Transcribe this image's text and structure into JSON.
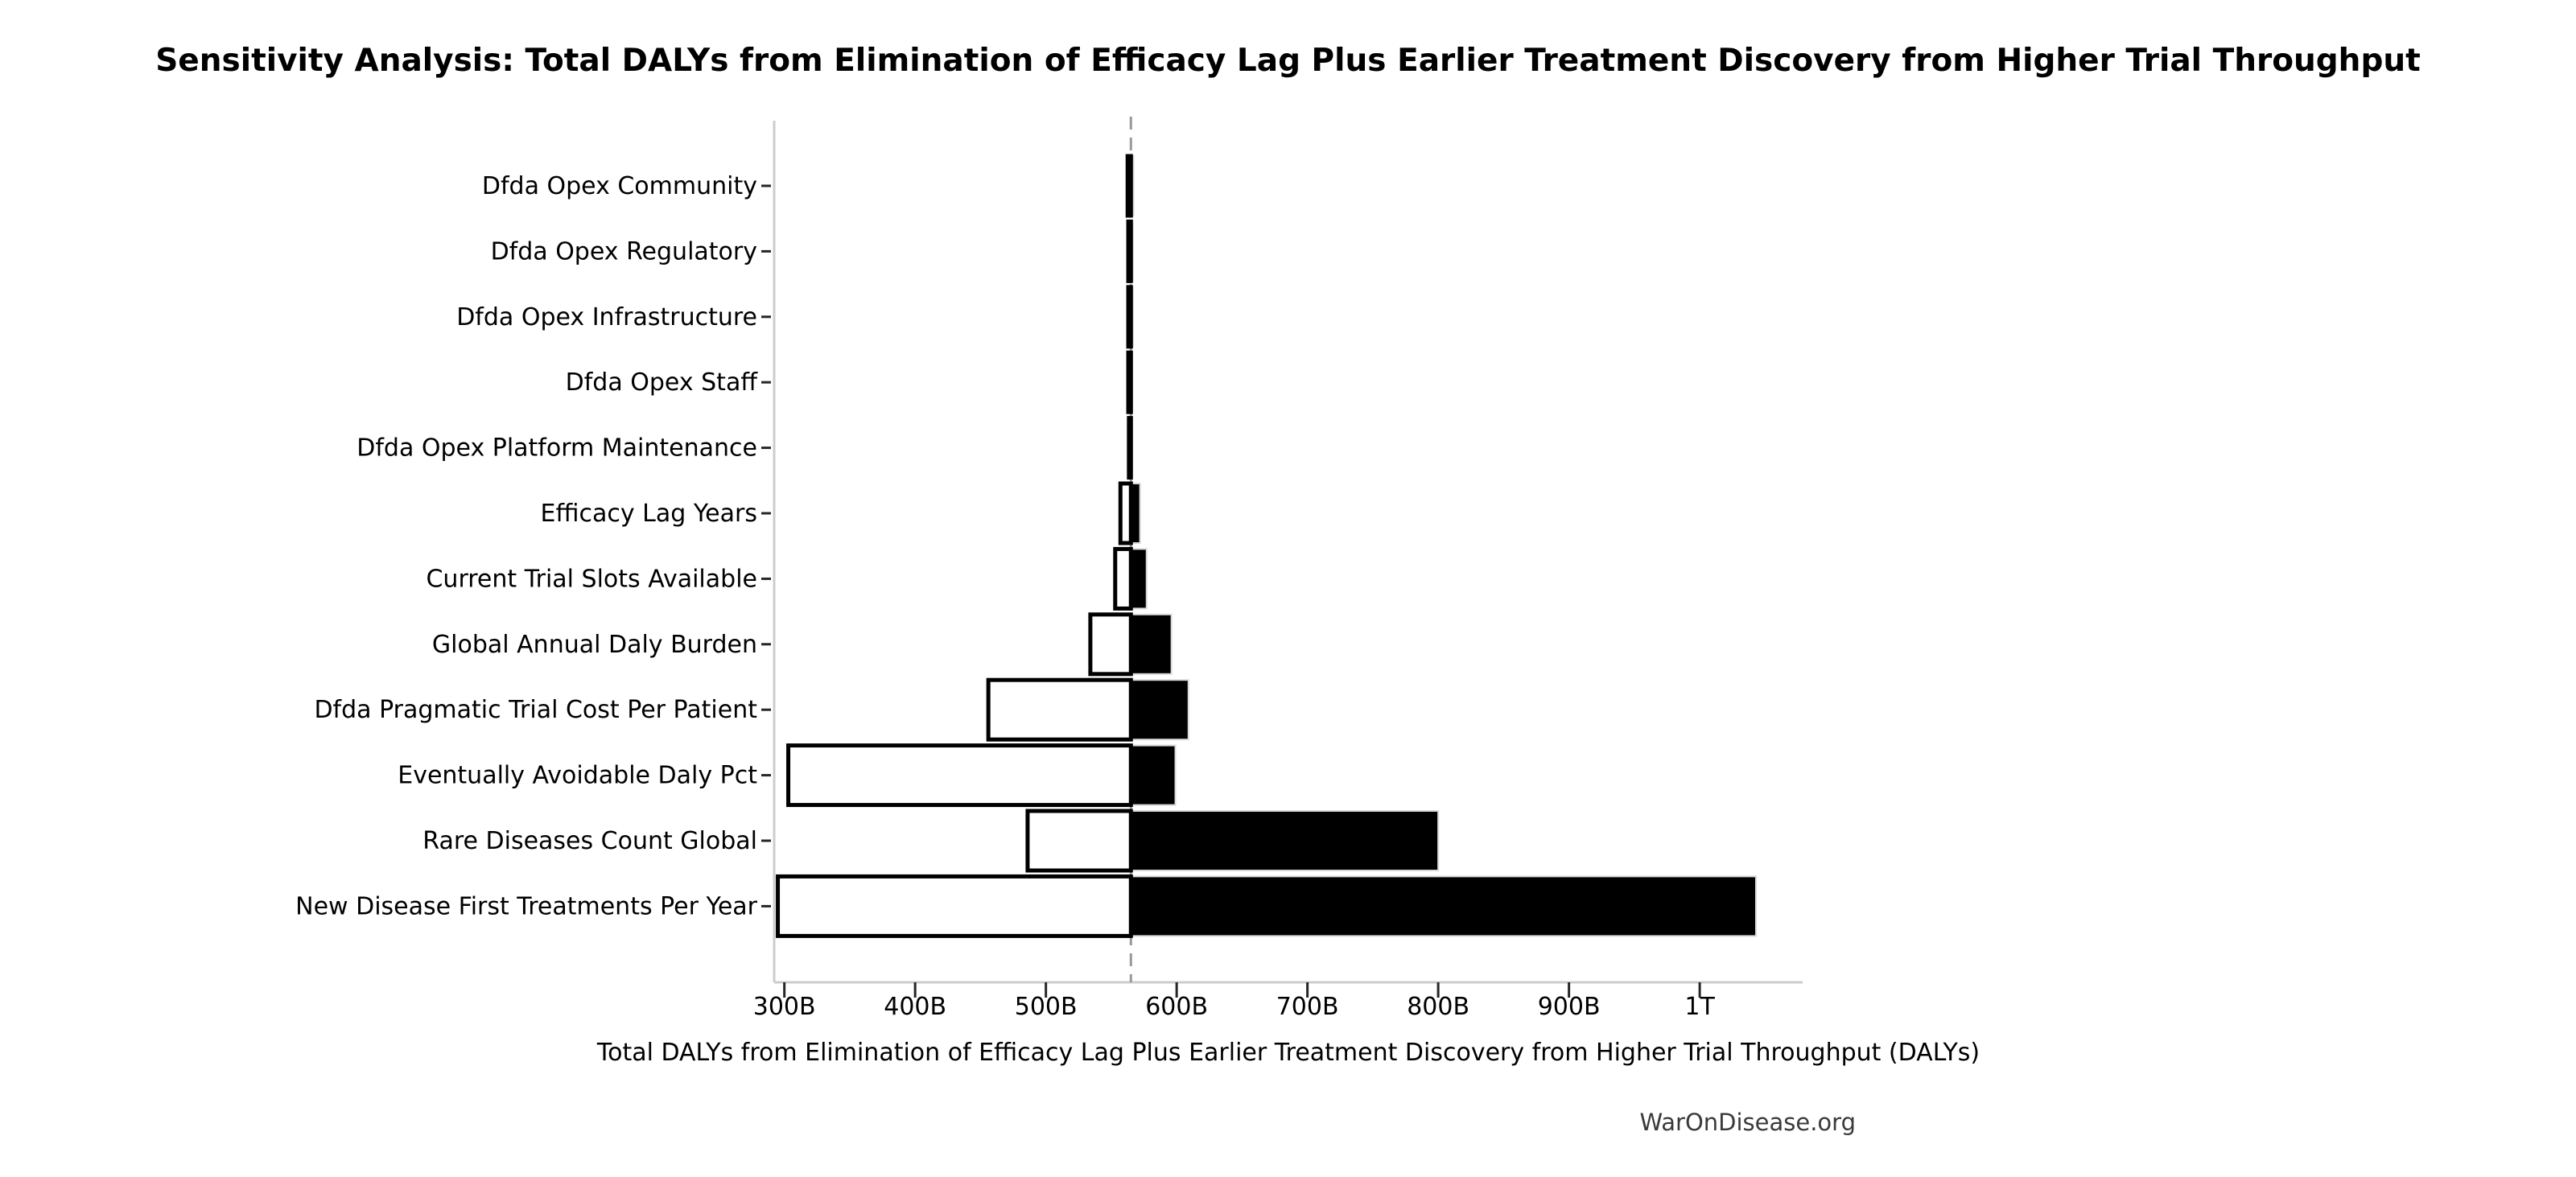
{
  "chart_data": {
    "type": "bar",
    "subtype": "tornado-sensitivity",
    "orientation": "horizontal",
    "title": "Sensitivity Analysis: Total DALYs from Elimination of Efficacy Lag Plus Earlier Treatment Discovery from Higher Trial Throughput",
    "xlabel": "Total DALYs from Elimination of Efficacy Lag Plus Earlier Treatment Discovery from Higher Trial Throughput (DALYs)",
    "watermark": "WarOnDisease.org",
    "unit": "DALYs",
    "value_scale": "billions",
    "categories": [
      "Dfda Opex Community",
      "Dfda Opex Regulatory",
      "Dfda Opex Infrastructure",
      "Dfda Opex Staff",
      "Dfda Opex Platform Maintenance",
      "Efficacy Lag Years",
      "Current Trial Slots Available",
      "Global Annual Daly Burden",
      "Dfda Pragmatic Trial Cost Per Patient",
      "Eventually Avoidable Daly Pct",
      "Rare Diseases Count Global",
      "New Disease First Treatments Per Year"
    ],
    "series": [
      {
        "name": "low_estimate",
        "values_b": [
          562.5,
          563,
          563,
          563,
          563.5,
          557,
          553,
          534,
          456,
          303,
          486,
          295
        ]
      },
      {
        "name": "high_estimate",
        "values_b": [
          567,
          566.5,
          566.5,
          566,
          566,
          572,
          577,
          596,
          609,
          599,
          800,
          1043
        ]
      }
    ],
    "baseline_b": 565,
    "xlim_b": [
      292.2,
      1078.7
    ],
    "xtick_values_b": [
      300,
      400,
      500,
      600,
      700,
      800,
      900,
      1000
    ],
    "xtick_labels": [
      "300B",
      "400B",
      "500B",
      "600B",
      "700B",
      "800B",
      "900B",
      "1T"
    ],
    "grid": false,
    "legend": false,
    "colors": {
      "low_fill": "#ffffff",
      "low_edge": "#000000",
      "high_fill": "#000000",
      "high_edge": "#d9d9d9",
      "baseline_line": "#999999",
      "spine": "#cccccc",
      "tick_mark": "#262626",
      "text": "#000000",
      "watermark_text": "#3a3a3a"
    }
  }
}
